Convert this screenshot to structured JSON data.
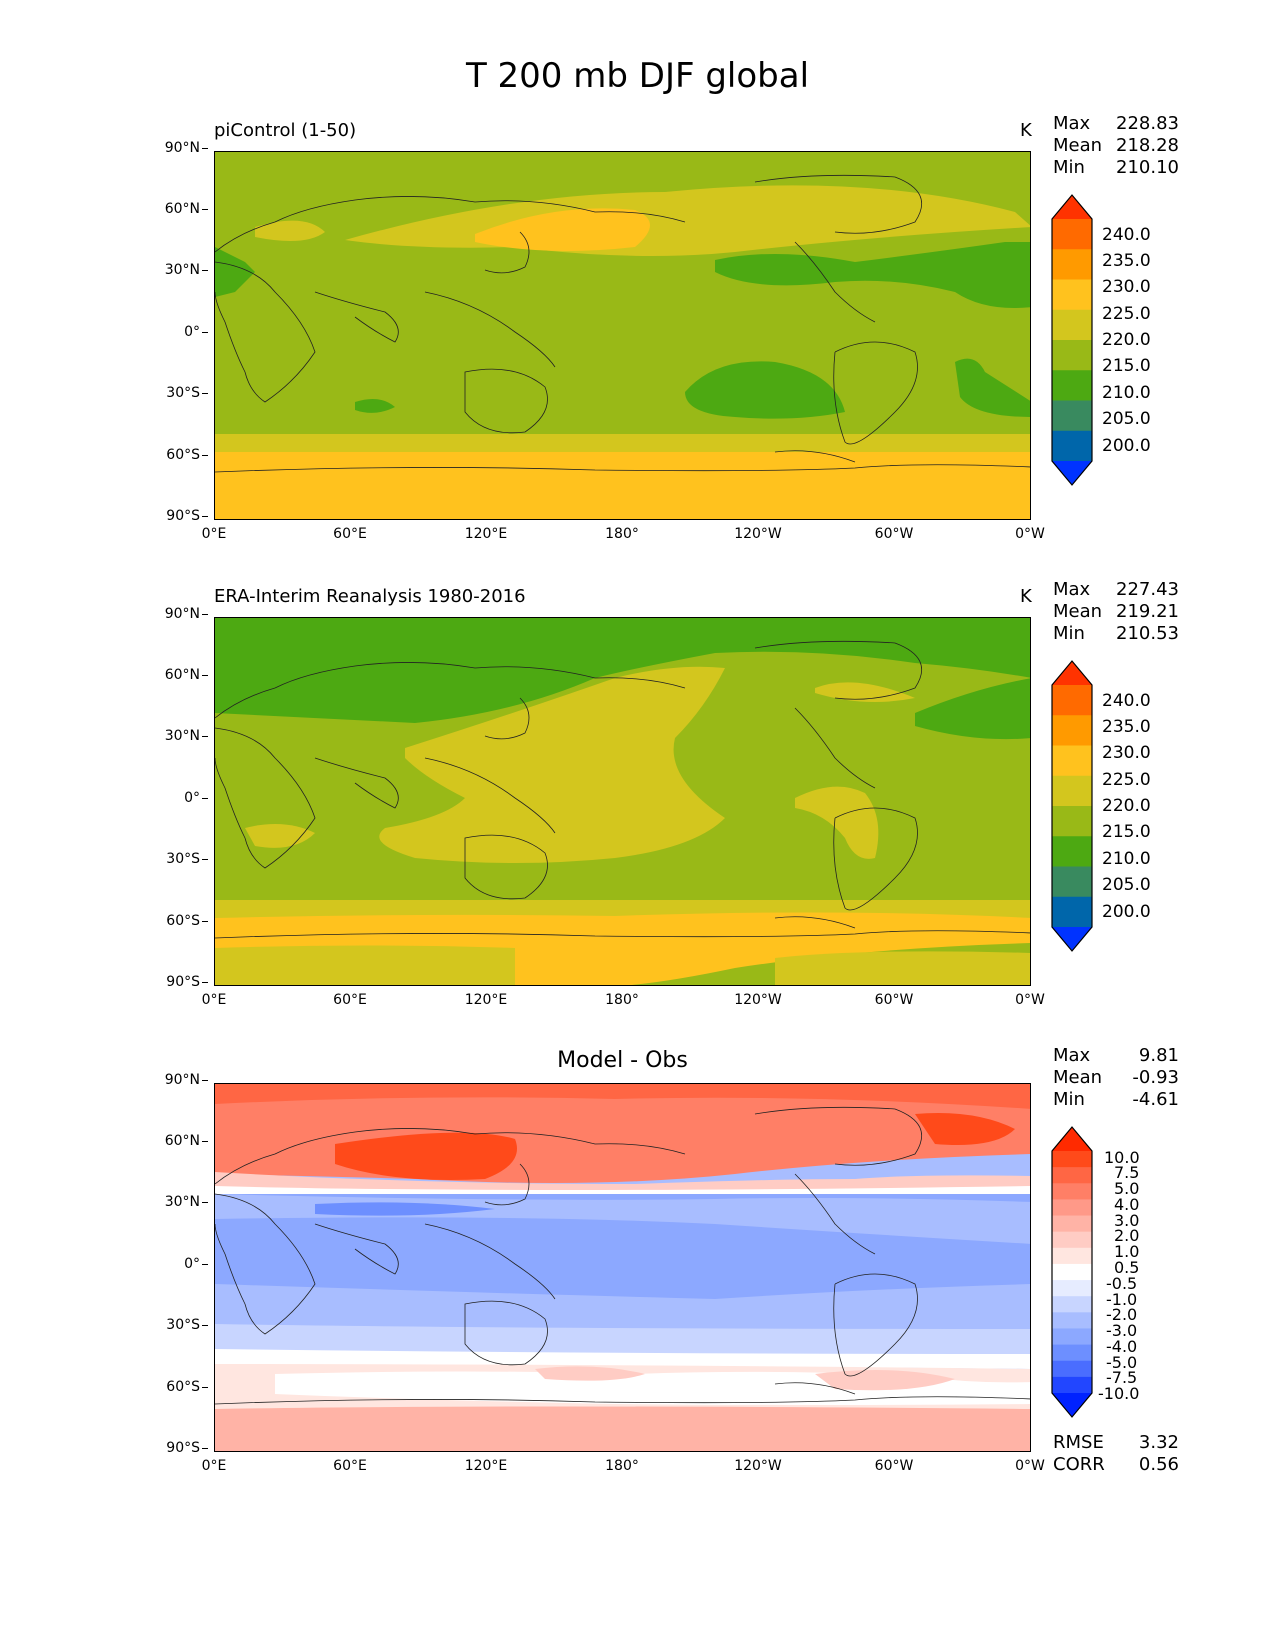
{
  "figure_title": "T 200 mb DJF global",
  "panels": [
    {
      "title": "piControl (1-50)",
      "units": "K",
      "stats": [
        {
          "label": "Max",
          "value": "228.83"
        },
        {
          "label": "Mean",
          "value": "218.28"
        },
        {
          "label": "Min",
          "value": "210.10"
        }
      ]
    },
    {
      "title": "ERA-Interim Reanalysis 1980-2016",
      "units": "K",
      "stats": [
        {
          "label": "Max",
          "value": "227.43"
        },
        {
          "label": "Mean",
          "value": "219.21"
        },
        {
          "label": "Min",
          "value": "210.53"
        }
      ]
    },
    {
      "title": "Model - Obs",
      "units": "",
      "stats": [
        {
          "label": "Max",
          "value": "9.81"
        },
        {
          "label": "Mean",
          "value": "-0.93"
        },
        {
          "label": "Min",
          "value": "-4.61"
        }
      ],
      "extra_stats": [
        {
          "label": "RMSE",
          "value": "3.32"
        },
        {
          "label": "CORR",
          "value": "0.56"
        }
      ]
    }
  ],
  "axes": {
    "y_ticks": [
      "90°N",
      "60°N",
      "30°N",
      "0°",
      "30°S",
      "60°S",
      "90°S"
    ],
    "x_ticks": [
      "0°E",
      "60°E",
      "120°E",
      "180°",
      "120°W",
      "60°W",
      "0°W"
    ]
  },
  "colorbars": {
    "absolute": {
      "labels": [
        "240.0",
        "235.0",
        "230.0",
        "225.0",
        "220.0",
        "215.0",
        "210.0",
        "205.0",
        "200.0"
      ],
      "colors": [
        "#ff3300",
        "#ff6a00",
        "#ff9a00",
        "#ffc21e",
        "#d3c61e",
        "#99b917",
        "#4da912",
        "#398a5f",
        "#0066aa",
        "#0033ff"
      ]
    },
    "difference": {
      "labels": [
        "10.0",
        "7.5",
        "5.0",
        "4.0",
        "3.0",
        "2.0",
        "1.0",
        "0.5",
        "-0.5",
        "-1.0",
        "-2.0",
        "-3.0",
        "-4.0",
        "-5.0",
        "-7.5",
        "-10.0"
      ],
      "colors": [
        "#ff2a00",
        "#ff4a1a",
        "#ff6644",
        "#ff7f66",
        "#ff9988",
        "#ffb3a6",
        "#ffccc4",
        "#ffe6e0",
        "#ffffff",
        "#e6ecff",
        "#c8d5ff",
        "#a8bdff",
        "#8ca8ff",
        "#6d8fff",
        "#4a6dff",
        "#2246ff",
        "#0022ff"
      ]
    }
  },
  "chart_data": [
    {
      "type": "heatmap",
      "title": "piControl (1-50)",
      "units": "K",
      "x_ticks": [
        "0°E",
        "60°E",
        "120°E",
        "180°",
        "120°W",
        "60°W",
        "0°W"
      ],
      "y_ticks": [
        "90°N",
        "60°N",
        "30°N",
        "0°",
        "30°S",
        "60°S",
        "90°S"
      ],
      "color_levels": [
        200,
        205,
        210,
        215,
        220,
        225,
        230,
        235,
        240
      ],
      "zonal_bands": [
        {
          "lat": [
            50,
            90
          ],
          "value": 217.5
        },
        {
          "lat": [
            40,
            50
          ],
          "value": 220
        },
        {
          "lat": [
            -45,
            40
          ],
          "value": 217
        },
        {
          "lat": [
            -55,
            -45
          ],
          "value": 221
        },
        {
          "lat": [
            -90,
            -55
          ],
          "value": 226
        }
      ],
      "stats": {
        "max": 228.83,
        "mean": 218.28,
        "min": 210.1
      }
    },
    {
      "type": "heatmap",
      "title": "ERA-Interim Reanalysis 1980-2016",
      "units": "K",
      "x_ticks": [
        "0°E",
        "60°E",
        "120°E",
        "180°",
        "120°W",
        "60°W",
        "0°W"
      ],
      "y_ticks": [
        "90°N",
        "60°N",
        "30°N",
        "0°",
        "30°S",
        "60°S",
        "90°S"
      ],
      "color_levels": [
        200,
        205,
        210,
        215,
        220,
        225,
        230,
        235,
        240
      ],
      "zonal_bands": [
        {
          "lat": [
            65,
            90
          ],
          "value": 213
        },
        {
          "lat": [
            40,
            65
          ],
          "value": 216
        },
        {
          "lat": [
            -45,
            40
          ],
          "value": 218.5
        },
        {
          "lat": [
            -55,
            -45
          ],
          "value": 221
        },
        {
          "lat": [
            -75,
            -55
          ],
          "value": 226
        },
        {
          "lat": [
            -90,
            -75
          ],
          "value": 222
        }
      ],
      "stats": {
        "max": 227.43,
        "mean": 219.21,
        "min": 210.53
      }
    },
    {
      "type": "heatmap",
      "title": "Model - Obs",
      "x_ticks": [
        "0°E",
        "60°E",
        "120°E",
        "180°",
        "120°W",
        "60°W",
        "0°W"
      ],
      "y_ticks": [
        "90°N",
        "60°N",
        "30°N",
        "0°",
        "30°S",
        "60°S",
        "90°S"
      ],
      "color_levels": [
        -10,
        -7.5,
        -5,
        -4,
        -3,
        -2,
        -1,
        -0.5,
        0.5,
        1,
        2,
        3,
        4,
        5,
        7.5,
        10
      ],
      "zonal_bands": [
        {
          "lat": [
            55,
            90
          ],
          "value": 4.5
        },
        {
          "lat": [
            45,
            55
          ],
          "value": 3.5
        },
        {
          "lat": [
            38,
            45
          ],
          "value": 0
        },
        {
          "lat": [
            -20,
            38
          ],
          "value": -3.5
        },
        {
          "lat": [
            -40,
            -20
          ],
          "value": -2.5
        },
        {
          "lat": [
            -50,
            -40
          ],
          "value": 0
        },
        {
          "lat": [
            -70,
            -50
          ],
          "value": 0.7
        },
        {
          "lat": [
            -90,
            -70
          ],
          "value": 2
        }
      ],
      "stats": {
        "max": 9.81,
        "mean": -0.93,
        "min": -4.61,
        "rmse": 3.32,
        "corr": 0.56
      }
    }
  ]
}
